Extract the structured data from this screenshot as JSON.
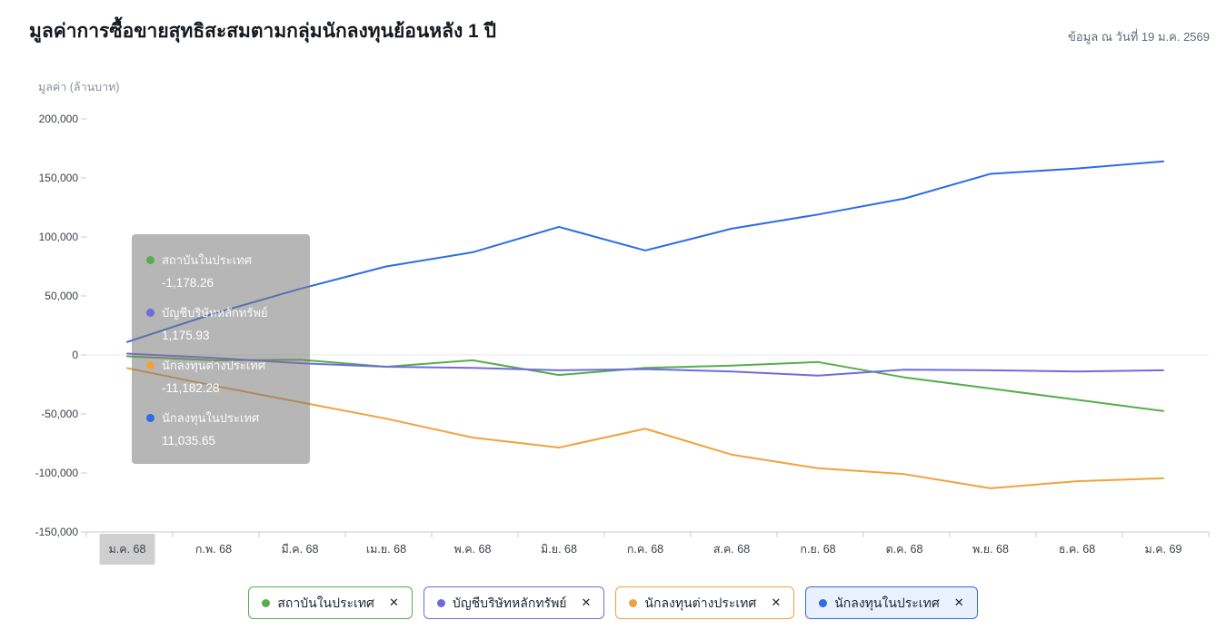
{
  "header": {
    "title": "มูลค่าการซื้อขายสุทธิสะสมตามกลุ่มนักลงทุนย้อนหลัง 1 ปี",
    "as_of": "ข้อมูล ณ วันที่ 19 ม.ค. 2569"
  },
  "chart_data": {
    "type": "line",
    "title": "มูลค่าการซื้อขายสุทธิสะสมตามกลุ่มนักลงทุนย้อนหลัง 1 ปี",
    "ylabel": "มูลค่า (ล้านบาท)",
    "xlabel": "",
    "grid": false,
    "legend_position": "bottom",
    "ylim": [
      -150000,
      200000
    ],
    "y_ticks": [
      {
        "value": 200000,
        "label": "200,000"
      },
      {
        "value": 150000,
        "label": "150,000"
      },
      {
        "value": 100000,
        "label": "100,000"
      },
      {
        "value": 50000,
        "label": "50,000"
      },
      {
        "value": 0,
        "label": "0"
      },
      {
        "value": -50000,
        "label": "-50,000"
      },
      {
        "value": -100000,
        "label": "-100,000"
      },
      {
        "value": -150000,
        "label": "-150,000"
      }
    ],
    "categories": [
      "ม.ค. 68",
      "ก.พ. 68",
      "มี.ค. 68",
      "เม.ย. 68",
      "พ.ค. 68",
      "มิ.ย. 68",
      "ก.ค. 68",
      "ส.ค. 68",
      "ก.ย. 68",
      "ต.ค. 68",
      "พ.ย. 68",
      "ธ.ค. 68",
      "ม.ค. 69"
    ],
    "series": [
      {
        "name": "สถาบันในประเทศ",
        "color": "#56AD4C",
        "values": [
          -1178.26,
          -4500,
          -4000,
          -10000,
          -4500,
          -17000,
          -11000,
          -9000,
          -6000,
          -19000,
          -28500,
          -38000,
          -47500
        ]
      },
      {
        "name": "บัญชีบริษัทหลักทรัพย์",
        "color": "#6F6BDF",
        "values": [
          1175.93,
          -2500,
          -7000,
          -10000,
          -11000,
          -13000,
          -12000,
          -14000,
          -17500,
          -12500,
          -13000,
          -14000,
          -13000
        ]
      },
      {
        "name": "นักลงทุนต่างประเทศ",
        "color": "#F0A23C",
        "values": [
          -11182.28,
          -26000,
          -40000,
          -54000,
          -70000,
          -78500,
          -62500,
          -84500,
          -96000,
          -101000,
          -113000,
          -107000,
          -104500
        ]
      },
      {
        "name": "นักลงทุนในประเทศ",
        "color": "#2E6BE6",
        "values": [
          11035.65,
          35000,
          56000,
          75000,
          87000,
          108500,
          88500,
          107000,
          119000,
          132500,
          153500,
          158000,
          164000
        ]
      }
    ]
  },
  "tooltip": {
    "highlighted_category": "ม.ค. 68",
    "rows": [
      {
        "label": "สถาบันในประเทศ",
        "value": "-1,178.26",
        "color": "#56AD4C"
      },
      {
        "label": "บัญชีบริษัทหลักทรัพย์",
        "value": "1,175.93",
        "color": "#6F6BDF"
      },
      {
        "label": "นักลงทุนต่างประเทศ",
        "value": "-11,182.28",
        "color": "#F0A23C"
      },
      {
        "label": "นักลงทุนในประเทศ",
        "value": "11,035.65",
        "color": "#2E6BE6"
      }
    ]
  },
  "legend": {
    "close_label": "✕",
    "items": [
      {
        "label": "สถาบันในประเทศ",
        "color": "#56AD4C",
        "bg": "#ffffff"
      },
      {
        "label": "บัญชีบริษัทหลักทรัพย์",
        "color": "#6F6BDF",
        "bg": "#ffffff"
      },
      {
        "label": "นักลงทุนต่างประเทศ",
        "color": "#F0A23C",
        "bg": "#ffffff"
      },
      {
        "label": "นักลงทุนในประเทศ",
        "color": "#2E6BE6",
        "bg": "#EAF1FE"
      }
    ]
  }
}
